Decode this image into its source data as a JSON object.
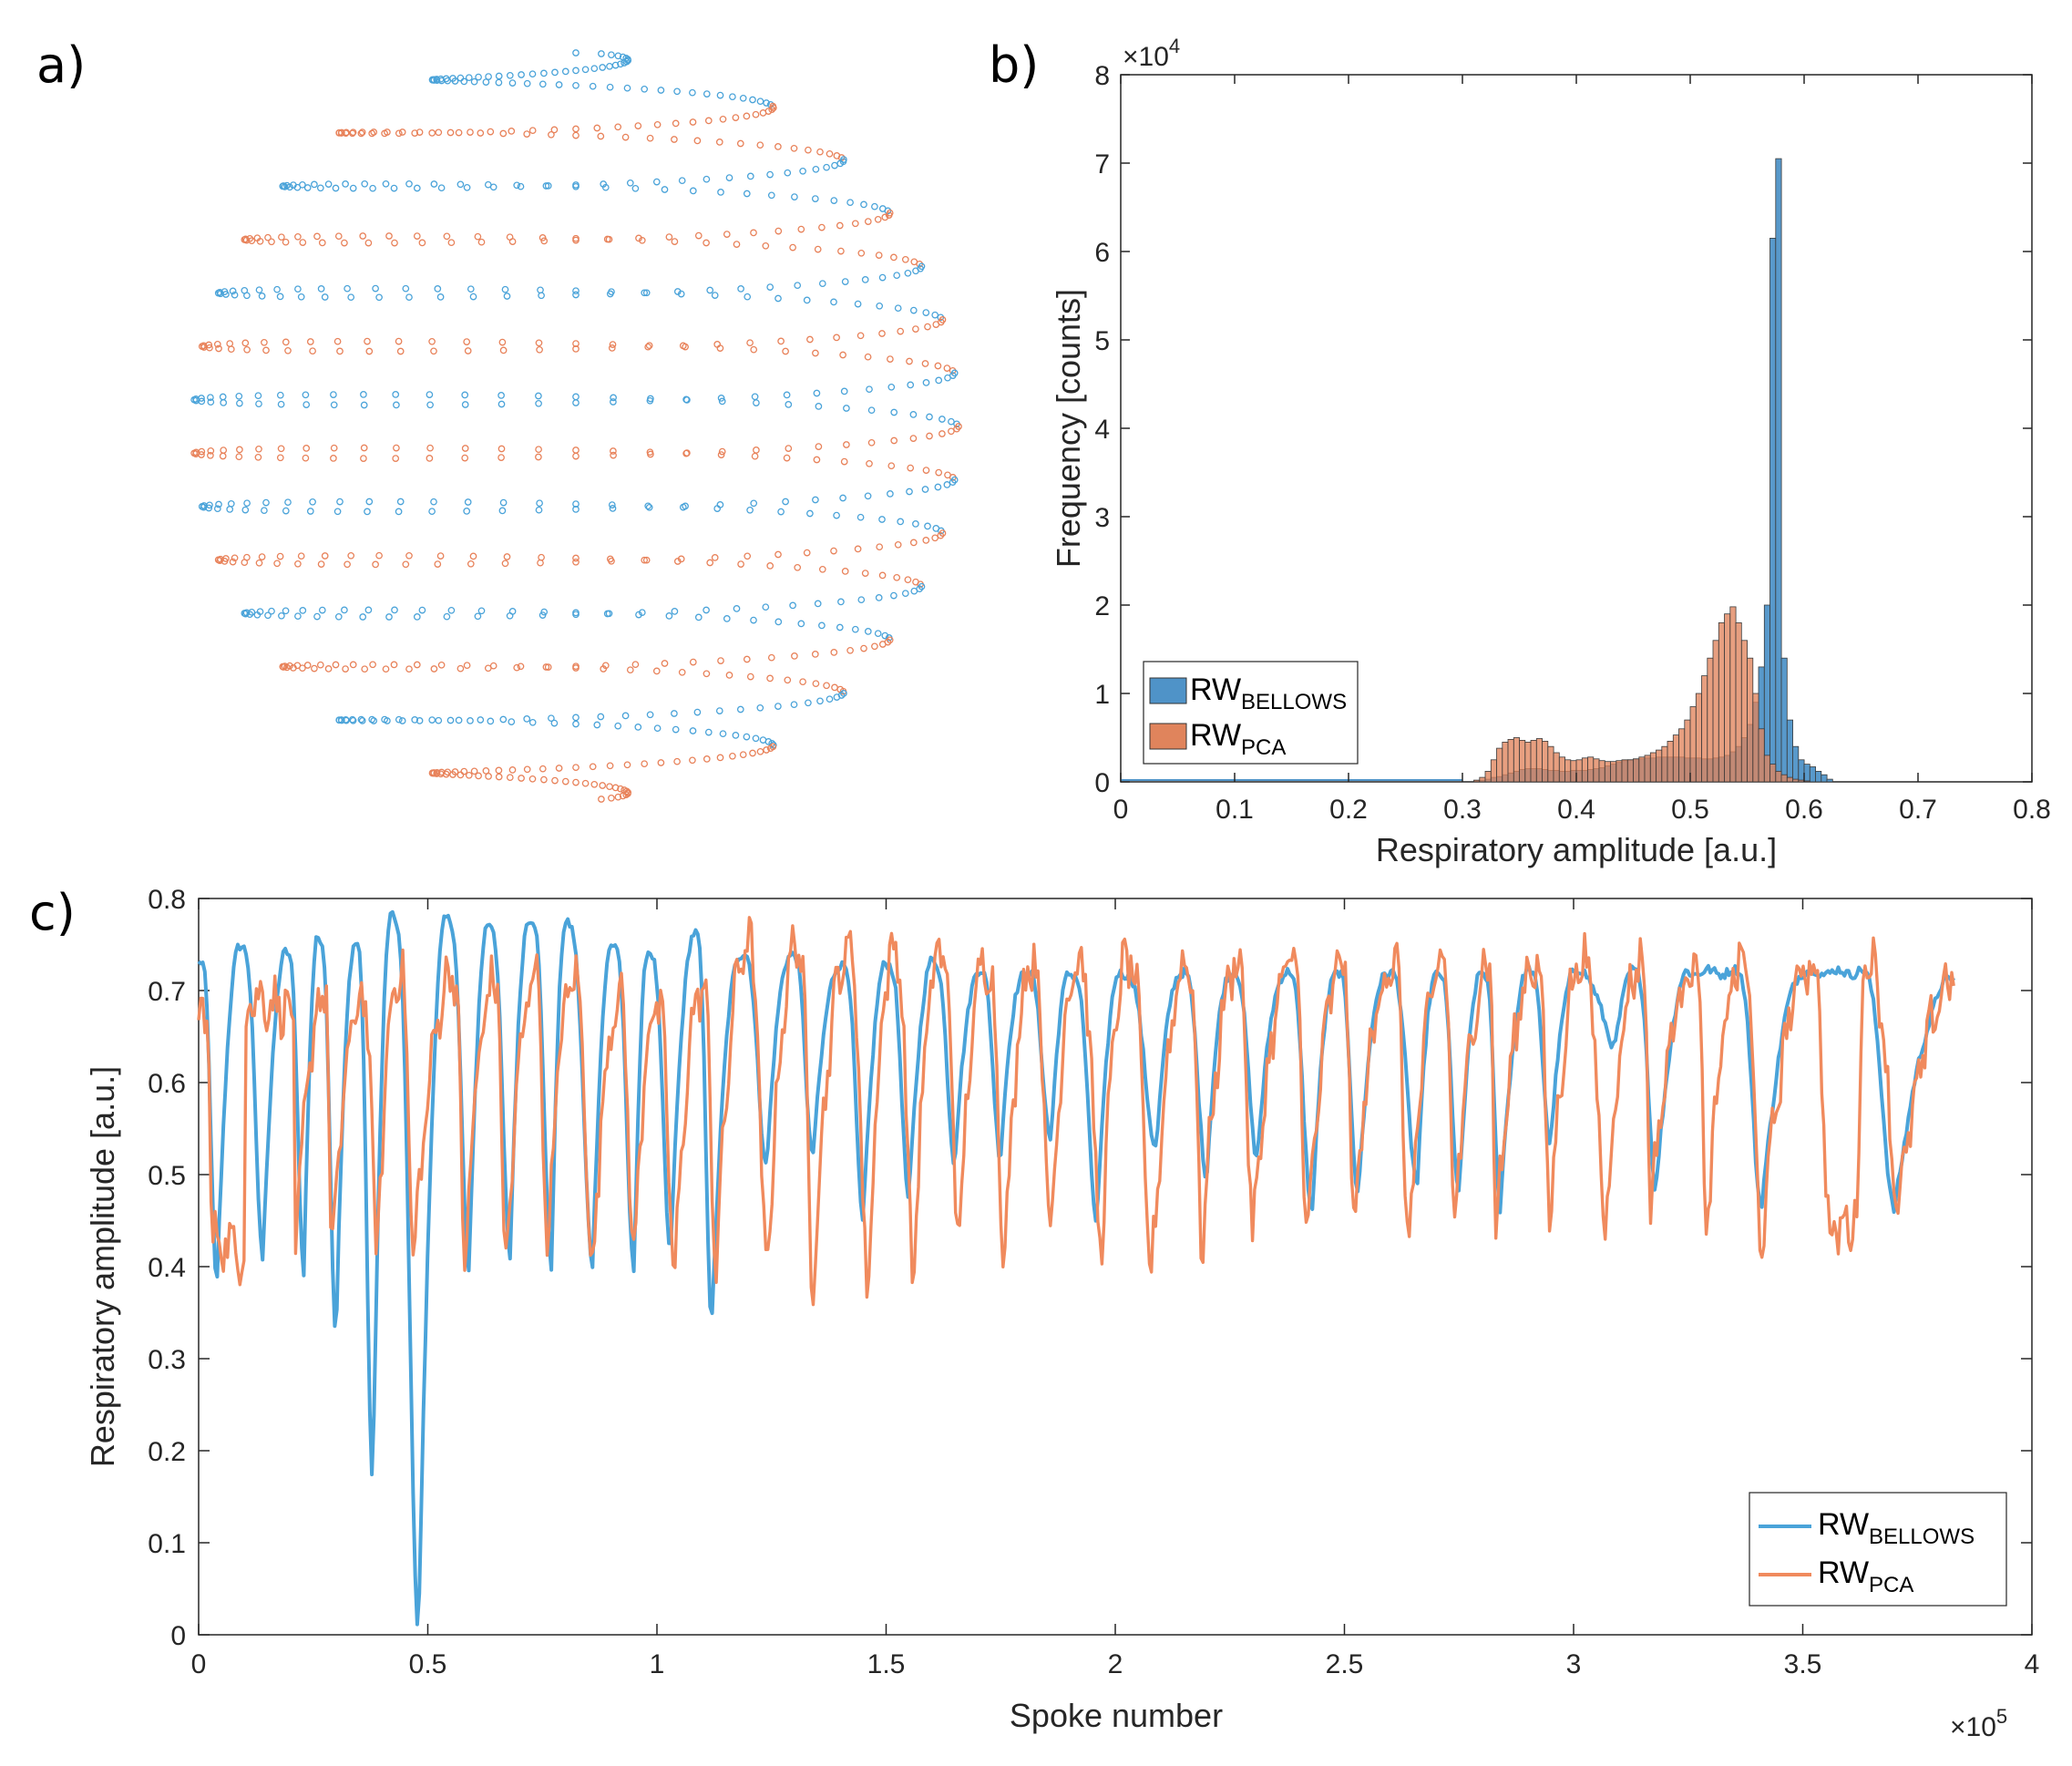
{
  "panel_labels": {
    "a": "a)",
    "b": "b)",
    "c": "c)"
  },
  "colors": {
    "blue": "#4aa3d9",
    "orange": "#e8825a",
    "blue_bar": "#4f93c8",
    "orange_bar": "#e0845c"
  },
  "chart_data": [
    {
      "id": "a",
      "type": "scatter",
      "title": "",
      "description_series": [
        "blue",
        "orange"
      ],
      "turns": 14,
      "points_per_turn": 64
    },
    {
      "id": "b",
      "type": "bar",
      "title": "",
      "xlabel": "Respiratory amplitude [a.u.]",
      "ylabel": "Frequency [counts]",
      "xlim": [
        0,
        0.8
      ],
      "ylim": [
        0,
        80000
      ],
      "yscale_label": "×10",
      "yscale_exp": "4",
      "xticks": [
        "0",
        "0.1",
        "0.2",
        "0.3",
        "0.4",
        "0.5",
        "0.6",
        "0.7",
        "0.8"
      ],
      "yticks": [
        "0",
        "1",
        "2",
        "3",
        "4",
        "5",
        "6",
        "7",
        "8"
      ],
      "legend": {
        "position": "lower-left",
        "entries": [
          {
            "base": "RW",
            "sub": "BELLOWS"
          },
          {
            "base": "RW",
            "sub": "PCA"
          }
        ]
      },
      "bin_width": 0.005,
      "bin_start": 0.3,
      "series": [
        {
          "name": "RW_BELLOWS",
          "values": [
            0,
            0,
            100,
            200,
            300,
            500,
            600,
            800,
            1000,
            1200,
            1400,
            1500,
            1500,
            1500,
            1400,
            1300,
            1300,
            1200,
            1200,
            1300,
            1300,
            1300,
            1400,
            1500,
            1600,
            1800,
            2000,
            2200,
            2400,
            2500,
            2600,
            2600,
            2700,
            2700,
            2800,
            2800,
            2800,
            2800,
            2800,
            2700,
            2700,
            2700,
            2600,
            2600,
            2700,
            2800,
            3000,
            3400,
            4000,
            5000,
            6500,
            9000,
            13000,
            20000,
            61500,
            70500,
            14000,
            7000,
            4000,
            2500,
            2000,
            1700,
            1200,
            800,
            300,
            0
          ]
        },
        {
          "name": "RW_PCA",
          "values": [
            0,
            0,
            200,
            500,
            1200,
            2500,
            3800,
            4500,
            4800,
            5000,
            4700,
            4500,
            4700,
            4900,
            4600,
            4000,
            3300,
            2800,
            2500,
            2400,
            2500,
            2700,
            2800,
            2600,
            2400,
            2300,
            2300,
            2400,
            2500,
            2500,
            2600,
            2800,
            3000,
            3300,
            3600,
            4000,
            4600,
            5300,
            6000,
            7000,
            8500,
            10000,
            12000,
            14000,
            16000,
            18000,
            19000,
            19800,
            18000,
            16000,
            14000,
            10000,
            6000,
            3000,
            2000,
            1200,
            800,
            500,
            300,
            200,
            100,
            0,
            0,
            0,
            0,
            0
          ]
        }
      ]
    },
    {
      "id": "c",
      "type": "line",
      "title": "",
      "xlabel": "Spoke number",
      "ylabel": "Respiratory amplitude [a.u.]",
      "xlim": [
        0,
        400000
      ],
      "ylim": [
        0,
        0.8
      ],
      "xscale_label": "×10",
      "xscale_exp": "5",
      "xticks": [
        "0",
        "0.5",
        "1",
        "1.5",
        "2",
        "2.5",
        "3",
        "3.5",
        "4"
      ],
      "yticks": [
        "0",
        "0.1",
        "0.2",
        "0.3",
        "0.4",
        "0.5",
        "0.6",
        "0.7",
        "0.8"
      ],
      "legend": {
        "position": "bottom-right",
        "entries": [
          {
            "base": "RW",
            "sub": "BELLOWS"
          },
          {
            "base": "RW",
            "sub": "PCA"
          }
        ]
      },
      "x_end": 383000,
      "breath_minima_bellows": [
        [
          4000,
          0.38
        ],
        [
          14000,
          0.41
        ],
        [
          23000,
          0.39
        ],
        [
          30000,
          0.32
        ],
        [
          38000,
          0.165
        ],
        [
          48000,
          0.0
        ],
        [
          59000,
          0.39
        ],
        [
          68000,
          0.41
        ],
        [
          77000,
          0.4
        ],
        [
          86000,
          0.4
        ],
        [
          95000,
          0.4
        ],
        [
          103000,
          0.41
        ],
        [
          112000,
          0.34
        ],
        [
          124000,
          0.51
        ],
        [
          134000,
          0.52
        ],
        [
          145000,
          0.45
        ],
        [
          155000,
          0.47
        ],
        [
          165000,
          0.51
        ],
        [
          175000,
          0.52
        ],
        [
          186000,
          0.54
        ],
        [
          196000,
          0.45
        ],
        [
          209000,
          0.53
        ],
        [
          220000,
          0.5
        ],
        [
          231000,
          0.52
        ],
        [
          243000,
          0.46
        ],
        [
          253000,
          0.48
        ],
        [
          266000,
          0.49
        ],
        [
          275000,
          0.48
        ],
        [
          284000,
          0.46
        ],
        [
          295000,
          0.53
        ],
        [
          309000,
          0.64
        ],
        [
          318000,
          0.48
        ],
        [
          341000,
          0.46
        ],
        [
          370000,
          0.46
        ]
      ],
      "peak_maxima_bellows": [
        [
          0,
          0.73
        ],
        [
          9000,
          0.75
        ],
        [
          19000,
          0.74
        ],
        [
          26000,
          0.76
        ],
        [
          34000,
          0.75
        ],
        [
          42000,
          0.78
        ],
        [
          54000,
          0.78
        ],
        [
          63000,
          0.77
        ],
        [
          72000,
          0.78
        ],
        [
          80000,
          0.77
        ],
        [
          90000,
          0.75
        ],
        [
          98000,
          0.74
        ],
        [
          108000,
          0.76
        ],
        [
          118000,
          0.74
        ],
        [
          129000,
          0.74
        ],
        [
          140000,
          0.73
        ],
        [
          150000,
          0.73
        ],
        [
          160000,
          0.73
        ],
        [
          170000,
          0.72
        ],
        [
          180000,
          0.72
        ],
        [
          190000,
          0.72
        ],
        [
          201000,
          0.72
        ],
        [
          214000,
          0.72
        ],
        [
          225000,
          0.72
        ],
        [
          237000,
          0.72
        ],
        [
          248000,
          0.72
        ],
        [
          259000,
          0.72
        ],
        [
          270000,
          0.72
        ],
        [
          280000,
          0.72
        ],
        [
          290000,
          0.72
        ],
        [
          300000,
          0.72
        ],
        [
          313000,
          0.72
        ],
        [
          325000,
          0.72
        ],
        [
          335000,
          0.72
        ],
        [
          350000,
          0.72
        ],
        [
          362000,
          0.72
        ],
        [
          383000,
          0.715
        ]
      ],
      "breath_minima_pca": [
        [
          3000,
          0.43
        ],
        [
          10000,
          0.41
        ],
        [
          21000,
          0.4
        ],
        [
          29000,
          0.4
        ],
        [
          39000,
          0.41
        ],
        [
          47000,
          0.41
        ],
        [
          58000,
          0.4
        ],
        [
          67000,
          0.39
        ],
        [
          76000,
          0.4
        ],
        [
          86000,
          0.39
        ],
        [
          95000,
          0.4
        ],
        [
          104000,
          0.39
        ],
        [
          113000,
          0.4
        ],
        [
          124000,
          0.39
        ],
        [
          134000,
          0.38
        ],
        [
          146000,
          0.37
        ],
        [
          156000,
          0.39
        ],
        [
          166000,
          0.43
        ],
        [
          176000,
          0.41
        ],
        [
          186000,
          0.43
        ],
        [
          197000,
          0.42
        ],
        [
          208000,
          0.39
        ],
        [
          219000,
          0.42
        ],
        [
          230000,
          0.43
        ],
        [
          242000,
          0.43
        ],
        [
          252000,
          0.44
        ],
        [
          264000,
          0.42
        ],
        [
          274000,
          0.44
        ],
        [
          283000,
          0.43
        ],
        [
          295000,
          0.45
        ],
        [
          307000,
          0.45
        ],
        [
          317000,
          0.47
        ],
        [
          329000,
          0.43
        ],
        [
          341000,
          0.42
        ],
        [
          356000,
          0.43
        ],
        [
          362000,
          0.45
        ],
        [
          371000,
          0.47
        ]
      ],
      "series": [
        {
          "name": "RW_BELLOWS",
          "color": "#4aa3d9"
        },
        {
          "name": "RW_PCA",
          "color": "#f08a5d"
        }
      ]
    }
  ]
}
